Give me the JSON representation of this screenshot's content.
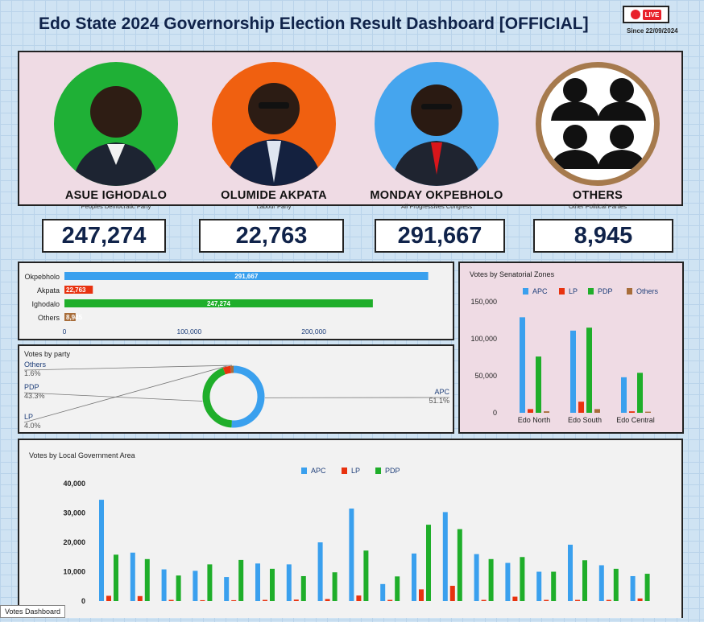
{
  "header": {
    "title": "Edo State 2024 Governorship Election Result Dashboard [OFFICIAL]",
    "live_label": "LIVE",
    "since": "Since 22/09/2024"
  },
  "candidates": [
    {
      "name": "ASUE IGHODALO",
      "party": "Peoples Democratic Party",
      "ring_color": "#1fb036",
      "votes": "247,274"
    },
    {
      "name": "OLUMIDE AKPATA",
      "party": "Labour Party",
      "ring_color": "#f06010",
      "votes": "22,763"
    },
    {
      "name": "MONDAY OKPEBHOLO",
      "party": "All Progressives Congress",
      "ring_color": "#45a5ee",
      "votes": "291,667"
    },
    {
      "name": "OTHERS",
      "party": "Other Political Parties",
      "ring_color": "#a67a4d",
      "votes": "8,945"
    }
  ],
  "colors": {
    "APC": "#3aa0ee",
    "LP": "#e8320f",
    "PDP": "#1fae2a",
    "Others": "#a86d3a"
  },
  "chart_data": [
    {
      "type": "bar",
      "orientation": "horizontal",
      "categories": [
        "Okpebholo",
        "Akpata",
        "Ighodalo",
        "Others"
      ],
      "values": [
        291667,
        22763,
        247274,
        8945
      ],
      "data_labels": [
        "291,667",
        "22,763",
        "247,274",
        "8,945"
      ],
      "colors": [
        "#3aa0ee",
        "#e8320f",
        "#1fae2a",
        "#a86d3a"
      ],
      "xticks": [
        "0",
        "100,000",
        "200,000"
      ],
      "xlim": [
        0,
        310000
      ]
    },
    {
      "type": "pie",
      "title": "Votes by party",
      "slices": [
        {
          "name": "APC",
          "value": 51.1,
          "label": "51.1%"
        },
        {
          "name": "PDP",
          "value": 43.3,
          "label": "43.3%"
        },
        {
          "name": "LP",
          "value": 4.0,
          "label": "4.0%"
        },
        {
          "name": "Others",
          "value": 1.6,
          "label": "1.6%"
        }
      ]
    },
    {
      "type": "bar",
      "title": "Votes by Senatorial Zones",
      "categories": [
        "Edo North",
        "Edo South",
        "Edo Central"
      ],
      "series": [
        {
          "name": "APC",
          "values": [
            129000,
            111000,
            48000
          ]
        },
        {
          "name": "LP",
          "values": [
            5000,
            15000,
            2000
          ]
        },
        {
          "name": "PDP",
          "values": [
            76000,
            115000,
            54000
          ]
        },
        {
          "name": "Others",
          "values": [
            2000,
            5000,
            1500
          ]
        }
      ],
      "yticks": [
        "0",
        "50,000",
        "100,000",
        "150,000"
      ],
      "ylim": [
        0,
        150000
      ],
      "legend": "top"
    },
    {
      "type": "bar",
      "title": "Votes by Local Government Area",
      "series": [
        {
          "name": "APC",
          "values": [
            34500,
            16500,
            10800,
            10300,
            8200,
            12800,
            12500,
            20000,
            31500,
            5800,
            16200,
            30300,
            16000,
            13000,
            10000,
            19200,
            12200,
            8500
          ]
        },
        {
          "name": "LP",
          "values": [
            1800,
            1700,
            400,
            300,
            300,
            400,
            500,
            700,
            1900,
            400,
            4000,
            5200,
            400,
            1500,
            400,
            400,
            400,
            900
          ]
        },
        {
          "name": "PDP",
          "values": [
            15800,
            14300,
            8700,
            12500,
            14000,
            11000,
            8500,
            9800,
            17200,
            8400,
            26000,
            24500,
            14300,
            15000,
            10000,
            13900,
            11000,
            9300
          ]
        }
      ],
      "yticks": [
        "0",
        "10,000",
        "20,000",
        "30,000",
        "40,000"
      ],
      "ylim": [
        0,
        40000
      ],
      "legend": "top"
    }
  ],
  "footer": {
    "tab_label": "Votes Dashboard"
  }
}
